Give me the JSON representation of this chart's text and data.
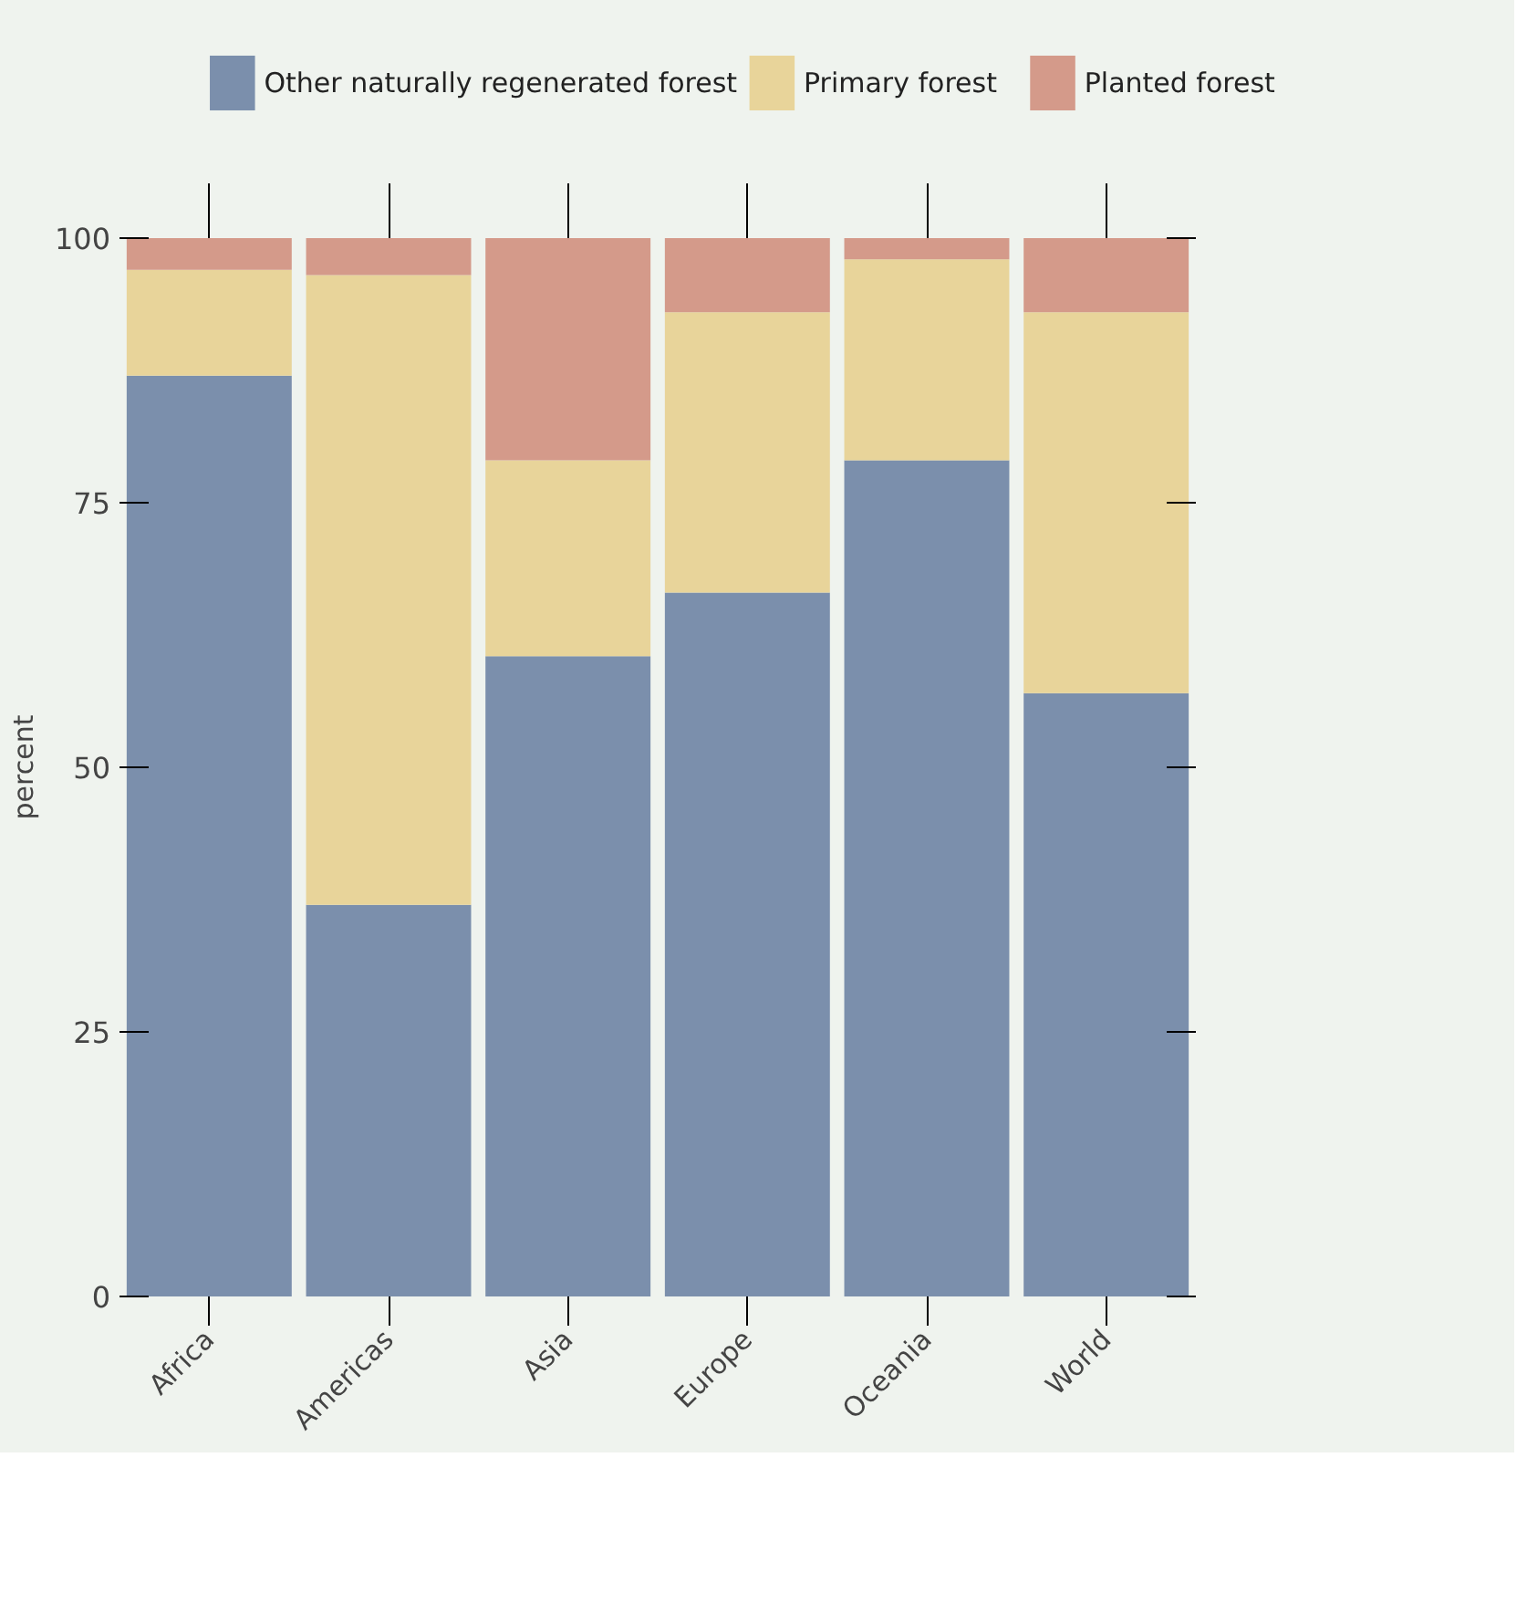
{
  "chart_data": {
    "type": "bar",
    "stacked": true,
    "ylabel": "percent",
    "categories": [
      "Africa",
      "Americas",
      "Asia",
      "Europe",
      "Oceania",
      "World"
    ],
    "series": [
      {
        "name": "Other naturally regenerated forest",
        "color": "#7b8fac",
        "values": [
          87,
          37,
          60.5,
          66.5,
          79,
          57
        ]
      },
      {
        "name": "Primary forest",
        "color": "#e8d49a",
        "values": [
          10,
          59.5,
          18.5,
          26.5,
          19,
          36
        ]
      },
      {
        "name": "Planted forest",
        "color": "#d49a8a",
        "values": [
          3,
          3.5,
          21,
          7,
          2,
          7
        ]
      }
    ],
    "ylim": [
      0,
      100
    ],
    "yticks": [
      0,
      25,
      50,
      75,
      100
    ],
    "grid": false,
    "legend": "top"
  }
}
